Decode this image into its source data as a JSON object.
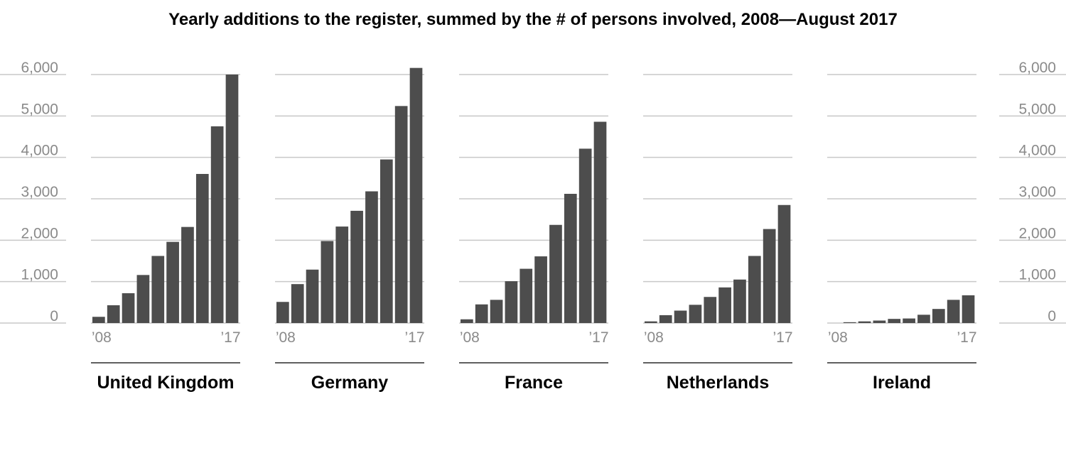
{
  "chart_data": {
    "type": "bar",
    "title": "Yearly additions to the register, summed by the # of persons involved, 2008—August 2017",
    "ylim": [
      0,
      6000
    ],
    "yticks": [
      0,
      1000,
      2000,
      3000,
      4000,
      5000,
      6000
    ],
    "ytick_labels": [
      "0",
      "1,000",
      "2,000",
      "3,000",
      "4,000",
      "5,000",
      "6,000"
    ],
    "categories": [
      "2008",
      "2009",
      "2010",
      "2011",
      "2012",
      "2013",
      "2014",
      "2015",
      "2016",
      "2017"
    ],
    "x_tick_labels": [
      "’08",
      "’17"
    ],
    "grid": true,
    "bar_color": "#4d4d4d",
    "grid_color": "#c8c8c8",
    "panels": [
      {
        "name": "United Kingdom",
        "values": [
          150,
          430,
          720,
          1160,
          1620,
          1960,
          2320,
          3600,
          4750,
          6000
        ]
      },
      {
        "name": "Germany",
        "values": [
          510,
          940,
          1290,
          1980,
          2330,
          2710,
          3180,
          3950,
          5240,
          6160
        ]
      },
      {
        "name": "France",
        "values": [
          90,
          450,
          560,
          1010,
          1310,
          1610,
          2370,
          3120,
          4210,
          4860
        ]
      },
      {
        "name": "Netherlands",
        "values": [
          40,
          190,
          300,
          440,
          630,
          860,
          1050,
          1620,
          2270,
          2850
        ]
      },
      {
        "name": "Ireland",
        "values": [
          0,
          20,
          40,
          60,
          100,
          110,
          200,
          340,
          560,
          670
        ]
      }
    ]
  }
}
